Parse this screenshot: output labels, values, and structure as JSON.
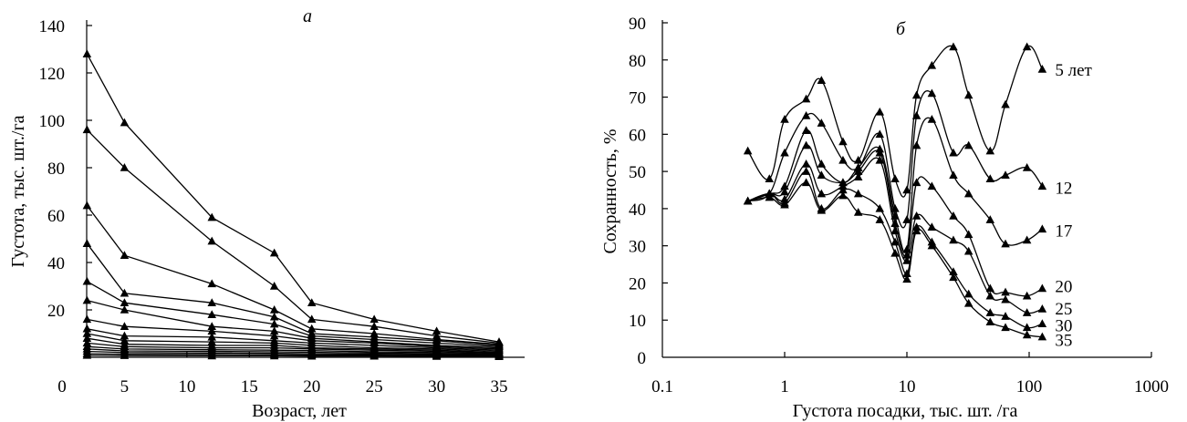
{
  "chart_data": [
    {
      "type": "line",
      "panel_label": "а",
      "xlabel": "Возраст, лет",
      "ylabel": "Густота, тыс. шт./га",
      "x_ticks": [
        0,
        5,
        10,
        15,
        20,
        25,
        30,
        35
      ],
      "y_ticks": [
        20,
        40,
        60,
        80,
        100,
        120,
        140
      ],
      "x_tick_labels": [
        "0",
        "5",
        "10",
        "15",
        "20",
        "25",
        "30",
        "35"
      ],
      "y_tick_labels": [
        "20",
        "40",
        "60",
        "80",
        "100",
        "120",
        "140"
      ],
      "xlim": [
        0,
        35
      ],
      "ylim": [
        0,
        140
      ],
      "x": [
        2,
        5,
        12,
        17,
        20,
        25,
        30,
        35
      ],
      "series": [
        {
          "values": [
            128,
            99,
            59,
            44,
            23,
            16,
            11,
            6.5
          ]
        },
        {
          "values": [
            96,
            80,
            49,
            30,
            16,
            13,
            9,
            6
          ]
        },
        {
          "values": [
            64,
            43,
            31,
            20,
            12,
            10,
            7.5,
            5.5
          ]
        },
        {
          "values": [
            48,
            27,
            23,
            17,
            10,
            8.5,
            7,
            5
          ]
        },
        {
          "values": [
            32,
            23,
            18,
            14,
            9,
            7.5,
            6,
            4.5
          ]
        },
        {
          "values": [
            24,
            20,
            13,
            11,
            8,
            6.5,
            5,
            4
          ]
        },
        {
          "values": [
            16,
            13,
            11,
            9,
            7,
            6,
            4.5,
            3.5
          ]
        },
        {
          "values": [
            12,
            9,
            8.5,
            7,
            6,
            5,
            4,
            3
          ]
        },
        {
          "values": [
            10,
            7,
            6.5,
            6,
            5,
            4,
            3.5,
            2.5
          ]
        },
        {
          "values": [
            8,
            5.5,
            5,
            5,
            4,
            3.5,
            3,
            2
          ]
        },
        {
          "values": [
            6,
            4.5,
            4,
            4,
            3.5,
            3,
            2.5,
            1.8
          ]
        },
        {
          "values": [
            4.5,
            3.5,
            3.2,
            3,
            2.8,
            2.3,
            2,
            1.5
          ]
        },
        {
          "values": [
            3.5,
            2.7,
            2.5,
            2.3,
            2.1,
            1.8,
            1.5,
            1.2
          ]
        },
        {
          "values": [
            2.5,
            2,
            1.8,
            1.7,
            1.5,
            1.3,
            1.1,
            0.9
          ]
        },
        {
          "values": [
            1.5,
            1.3,
            1.2,
            1.1,
            1,
            0.9,
            0.8,
            0.6
          ]
        },
        {
          "values": [
            0.8,
            0.7,
            0.6,
            0.6,
            0.5,
            0.5,
            0.4,
            0.3
          ]
        }
      ]
    },
    {
      "type": "line",
      "panel_label": "б",
      "xlabel": "Густота посадки, тыс. шт. /га",
      "ylabel": "Сохранность, %",
      "x_scale": "log",
      "x_ticks": [
        0.1,
        1,
        10,
        100,
        1000
      ],
      "x_tick_labels": [
        "0.1",
        "1",
        "10",
        "100",
        "1000"
      ],
      "y_ticks": [
        0,
        10,
        20,
        30,
        40,
        50,
        60,
        70,
        80,
        90
      ],
      "y_tick_labels": [
        "0",
        "10",
        "20",
        "30",
        "40",
        "50",
        "60",
        "70",
        "80",
        "90"
      ],
      "xlim": [
        0.1,
        1000
      ],
      "ylim": [
        0,
        90
      ],
      "series": [
        {
          "name": "5 лет",
          "x": [
            0.5,
            0.75,
            1,
            1.5,
            2,
            3,
            4,
            6,
            8,
            10,
            12,
            16,
            24,
            32,
            48,
            64,
            96,
            128
          ],
          "values": [
            55.5,
            48,
            64,
            69.5,
            74.5,
            58,
            53,
            66,
            48,
            45,
            70.5,
            78.5,
            83.5,
            70.5,
            55.5,
            68,
            83.5,
            77.5
          ]
        },
        {
          "name": "12",
          "x": [
            0.5,
            0.75,
            1,
            1.5,
            2,
            3,
            4,
            6,
            8,
            10,
            12,
            16,
            24,
            32,
            48,
            64,
            96,
            128
          ],
          "values": [
            42,
            44,
            55,
            65,
            63,
            53,
            51,
            60,
            40,
            37,
            65,
            71,
            55,
            57,
            48,
            49,
            51,
            46
          ]
        },
        {
          "name": "17",
          "x": [
            0.5,
            0.75,
            1,
            1.5,
            2,
            3,
            4,
            6,
            8,
            10,
            12,
            16,
            24,
            32,
            48,
            64,
            96,
            128
          ],
          "values": [
            42,
            44,
            46,
            61,
            52,
            47,
            51,
            56,
            38,
            29,
            57,
            64,
            49,
            44,
            37,
            30.5,
            31.5,
            34.5
          ]
        },
        {
          "name": "20",
          "x": [
            0.5,
            0.75,
            1,
            1.5,
            2,
            3,
            4,
            6,
            8,
            10,
            12,
            16,
            24,
            32,
            48,
            64,
            96,
            128
          ],
          "values": [
            42,
            44,
            44.5,
            57,
            49,
            47,
            50,
            55,
            36,
            27.5,
            47,
            46,
            38,
            33,
            18.5,
            17.5,
            16.5,
            18.5
          ]
        },
        {
          "name": "25",
          "x": [
            0.5,
            0.75,
            1,
            1.5,
            2,
            3,
            4,
            6,
            8,
            10,
            12,
            16,
            24,
            32,
            48,
            64,
            96,
            128
          ],
          "values": [
            42,
            44,
            42.5,
            52,
            44,
            46,
            48.5,
            53,
            34,
            26,
            38,
            35,
            31.5,
            28.5,
            16.5,
            15.5,
            12,
            13
          ]
        },
        {
          "name": "30",
          "x": [
            0.5,
            0.75,
            1,
            1.5,
            2,
            3,
            4,
            6,
            8,
            10,
            12,
            16,
            24,
            32,
            48,
            64,
            96,
            128
          ],
          "values": [
            42,
            44,
            41.5,
            50,
            40,
            45,
            44,
            40,
            31,
            22.5,
            35,
            31,
            23,
            17,
            12,
            11,
            8,
            9
          ]
        },
        {
          "name": "35",
          "x": [
            0.5,
            0.75,
            1,
            1.5,
            2,
            3,
            4,
            6,
            8,
            10,
            12,
            16,
            24,
            32,
            48,
            64,
            96,
            128
          ],
          "values": [
            42,
            43,
            41,
            47,
            39.5,
            43.5,
            39,
            37,
            28,
            21,
            34,
            30,
            21.5,
            14.5,
            9.5,
            8,
            6,
            5.5
          ]
        }
      ]
    }
  ]
}
